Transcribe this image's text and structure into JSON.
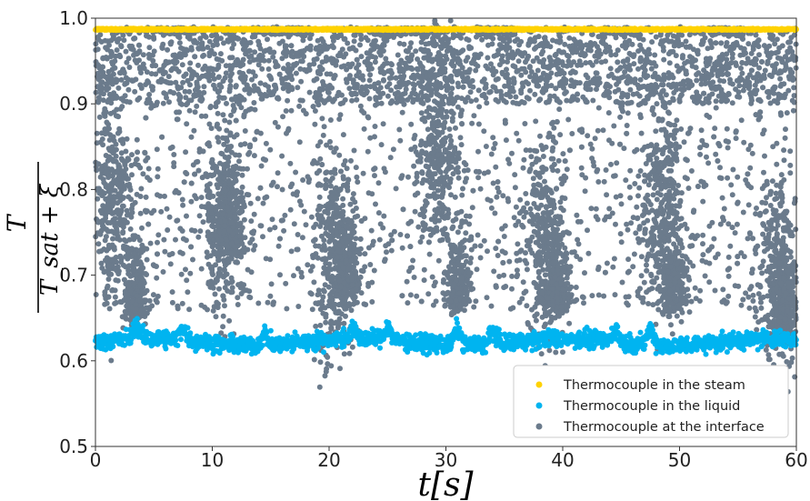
{
  "chart_data": {
    "type": "scatter",
    "xlabel": "t[s]",
    "ylabel_main": "T",
    "ylabel_denominator": "T_sat + ξ",
    "xlim": [
      0,
      60
    ],
    "ylim": [
      0.5,
      1.0
    ],
    "x_ticks": [
      "0",
      "10",
      "20",
      "30",
      "40",
      "50",
      "60"
    ],
    "y_ticks": [
      "0.5",
      "0.6",
      "0.7",
      "0.8",
      "0.9",
      "1.0"
    ],
    "grid": false,
    "legend_position": "lower-right",
    "series": [
      {
        "name": "Thermocouple in the steam",
        "color": "#FFD200",
        "level": 0.987,
        "spread": 0.002
      },
      {
        "name": "Thermocouple in the liquid",
        "color": "#00B4F0",
        "mean": 0.622,
        "spread": 0.012,
        "peaks": [
          [
            3.5,
            0.638
          ],
          [
            7.5,
            0.637
          ],
          [
            14.5,
            0.635
          ],
          [
            22.0,
            0.632
          ],
          [
            25.0,
            0.638
          ],
          [
            31.0,
            0.641
          ],
          [
            34.0,
            0.637
          ],
          [
            44.5,
            0.636
          ],
          [
            47.5,
            0.64
          ]
        ]
      },
      {
        "name": "Thermocouple at the interface",
        "color": "#6B7B8C",
        "plateaus": [
          [
            5.5,
            8.5
          ],
          [
            13.5,
            18.5
          ],
          [
            23.5,
            29.5
          ],
          [
            33.0,
            36.0
          ],
          [
            43.5,
            46.0
          ],
          [
            52.5,
            55.5
          ]
        ],
        "plateau_level": 0.985,
        "dips": [
          [
            3.5,
            0.64
          ],
          [
            11.5,
            0.72
          ],
          [
            21.5,
            0.66
          ],
          [
            31.0,
            0.65
          ],
          [
            39.5,
            0.65
          ],
          [
            49.5,
            0.65
          ],
          [
            59.0,
            0.63
          ]
        ],
        "dense_clusters": [
          [
            1.5,
            0.79
          ],
          [
            11.0,
            0.77
          ],
          [
            20.5,
            0.72
          ],
          [
            29.5,
            0.86
          ],
          [
            38.5,
            0.73
          ],
          [
            48.5,
            0.78
          ],
          [
            58.5,
            0.7
          ]
        ]
      }
    ]
  }
}
